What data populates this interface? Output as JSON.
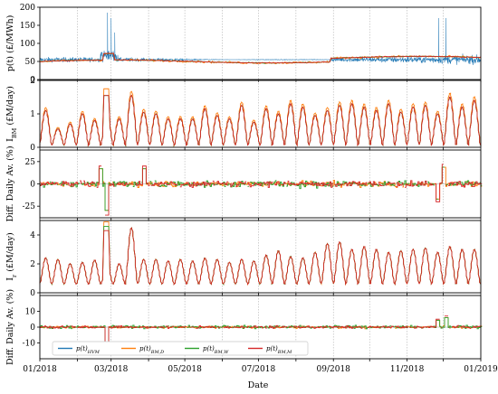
{
  "chart_data": {
    "type": "line",
    "xlabel": "Date",
    "x_ticks": [
      "01/2018",
      "03/2018",
      "05/2018",
      "07/2018",
      "09/2018",
      "11/2018",
      "01/2019"
    ],
    "x_range": [
      "2018-01-01",
      "2019-01-01"
    ],
    "grid": "vertical dotted",
    "legend": {
      "placement": "bottom-left",
      "entries": [
        "p(t)HVM",
        "p(t)BM,D",
        "p(t)BM,W",
        "p(t)BM,M"
      ],
      "entry_math": [
        {
          "p": "p(t)",
          "sub": "HVM"
        },
        {
          "p": "p(t)",
          "sub": "BM,D"
        },
        {
          "p": "p(t)",
          "sub": "BM,W"
        },
        {
          "p": "p(t)",
          "sub": "BM,M"
        }
      ]
    },
    "colors": {
      "hvm": "#1f77b4",
      "bm_d": "#ff7f0e",
      "bm_w": "#2ca02c",
      "bm_m": "#d62728"
    },
    "panels": [
      {
        "id": "price",
        "ylabel_main": "p(t) (£/MWh)",
        "ylim": [
          0,
          200
        ],
        "yticks": [
          0,
          50,
          100,
          150,
          200
        ],
        "series": [
          {
            "key": "hvm",
            "description_levels": {
              "baseline": 55,
              "winter_spread": 15
            }
          },
          {
            "key": "bm_m",
            "level": 50
          }
        ],
        "spike_points": [
          {
            "date": "2018-02-26",
            "value": 185
          },
          {
            "date": "2018-03-01",
            "value": 170
          },
          {
            "date": "2018-11-27",
            "value": 170
          },
          {
            "date": "2018-12-03",
            "value": 170
          },
          {
            "date": "2018-03-04",
            "value": 130
          }
        ]
      },
      {
        "id": "ibm",
        "ylabel_main": "I",
        "ylabel_sub": "BM",
        "ylabel_unit": " (£M/day)",
        "ylim": [
          0,
          2
        ],
        "yticks": [
          0,
          1,
          2
        ],
        "weekly_peaks": [
          1.1,
          0.55,
          0.7,
          1.0,
          0.8,
          1.0,
          0.85,
          1.55,
          1.05,
          1.0,
          0.85,
          0.85,
          0.85,
          1.15,
          0.95,
          0.85,
          1.25,
          0.75,
          1.15,
          1.0,
          1.3,
          1.2,
          0.95,
          1.1,
          1.25,
          1.3,
          1.2,
          1.1,
          1.3,
          1.05,
          1.2,
          1.25,
          1.0,
          1.5,
          1.2,
          1.4
        ],
        "orange_peak_max": 1.75
      },
      {
        "id": "diff_ibm",
        "ylabel_main": "Diff. Daily Av. (%)",
        "ylim": [
          -38,
          38
        ],
        "yticks": [
          -25,
          0,
          25
        ],
        "notable": [
          {
            "date": "2018-02-25",
            "value": -35
          },
          {
            "date": "2018-02-20",
            "value": 20
          },
          {
            "date": "2018-03-28",
            "value": 20
          },
          {
            "date": "2018-12-01",
            "value": 22
          },
          {
            "date": "2018-11-26",
            "value": -20
          }
        ]
      },
      {
        "id": "ir",
        "ylabel_main": "I",
        "ylabel_sub": "r",
        "ylabel_unit": " (£M/day)",
        "ylim": [
          0,
          5
        ],
        "yticks": [
          0,
          2,
          4
        ],
        "weekly_peaks": [
          2.4,
          2.3,
          2.0,
          2.1,
          2.25,
          2.1,
          2.0,
          4.5,
          2.3,
          2.3,
          2.2,
          2.3,
          2.2,
          2.4,
          2.3,
          2.1,
          2.3,
          2.2,
          2.6,
          2.9,
          2.5,
          2.4,
          2.8,
          3.4,
          3.5,
          3.0,
          3.2,
          3.0,
          2.8,
          2.9,
          3.0,
          3.1,
          2.8,
          3.2,
          3.0,
          3.0
        ],
        "spike_max": 4.9
      },
      {
        "id": "diff_ir",
        "ylabel_main": "Diff. Daily Av. (%)",
        "ylim": [
          -20,
          20
        ],
        "yticks": [
          -10,
          0,
          10
        ],
        "notable": [
          {
            "date": "2018-02-25",
            "value": -13
          },
          {
            "date": "2018-11-26",
            "value": 5
          },
          {
            "date": "2018-12-03",
            "value": 7
          }
        ]
      }
    ]
  }
}
